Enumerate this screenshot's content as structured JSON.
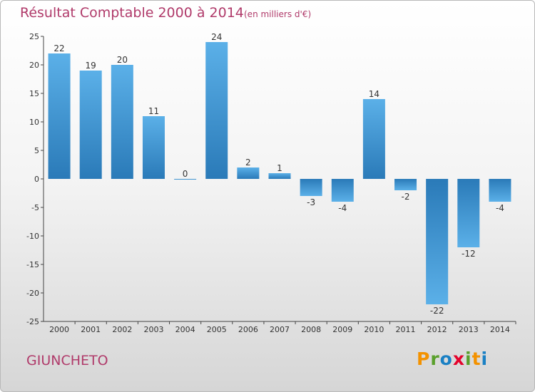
{
  "header": {
    "title": "Résultat Comptable 2000 à 2014",
    "unit": "(en milliers d'€)"
  },
  "commune": "GIUNCHETO",
  "brand": {
    "letters": [
      "P",
      "r",
      "o",
      "x",
      "i",
      "t",
      "i"
    ]
  },
  "colors": {
    "title": "#b03a6a",
    "bar_dark": "#2a7ab8",
    "bar_light": "#5bb0e8",
    "axis": "#444444",
    "grid": "#cccccc",
    "brand_letters": [
      "#f39200",
      "#5aa02c",
      "#1a80c4",
      "#e4032c",
      "#5aa02c",
      "#f39200",
      "#1a80c4"
    ]
  },
  "chart_data": {
    "type": "bar",
    "title": "Résultat Comptable 2000 à 2014",
    "subtitle": "(en milliers d'€)",
    "xlabel": "",
    "ylabel": "",
    "categories": [
      "2000",
      "2001",
      "2002",
      "2003",
      "2004",
      "2005",
      "2006",
      "2007",
      "2008",
      "2009",
      "2010",
      "2011",
      "2012",
      "2013",
      "2014"
    ],
    "values": [
      22,
      19,
      20,
      11,
      0,
      24,
      2,
      1,
      -3,
      -4,
      14,
      -2,
      -22,
      -12,
      -4
    ],
    "ylim": [
      -25,
      25
    ],
    "yticks": [
      25,
      20,
      15,
      10,
      5,
      0,
      -5,
      -10,
      -15,
      -20,
      -25
    ],
    "grid": false,
    "data_labels": true
  }
}
